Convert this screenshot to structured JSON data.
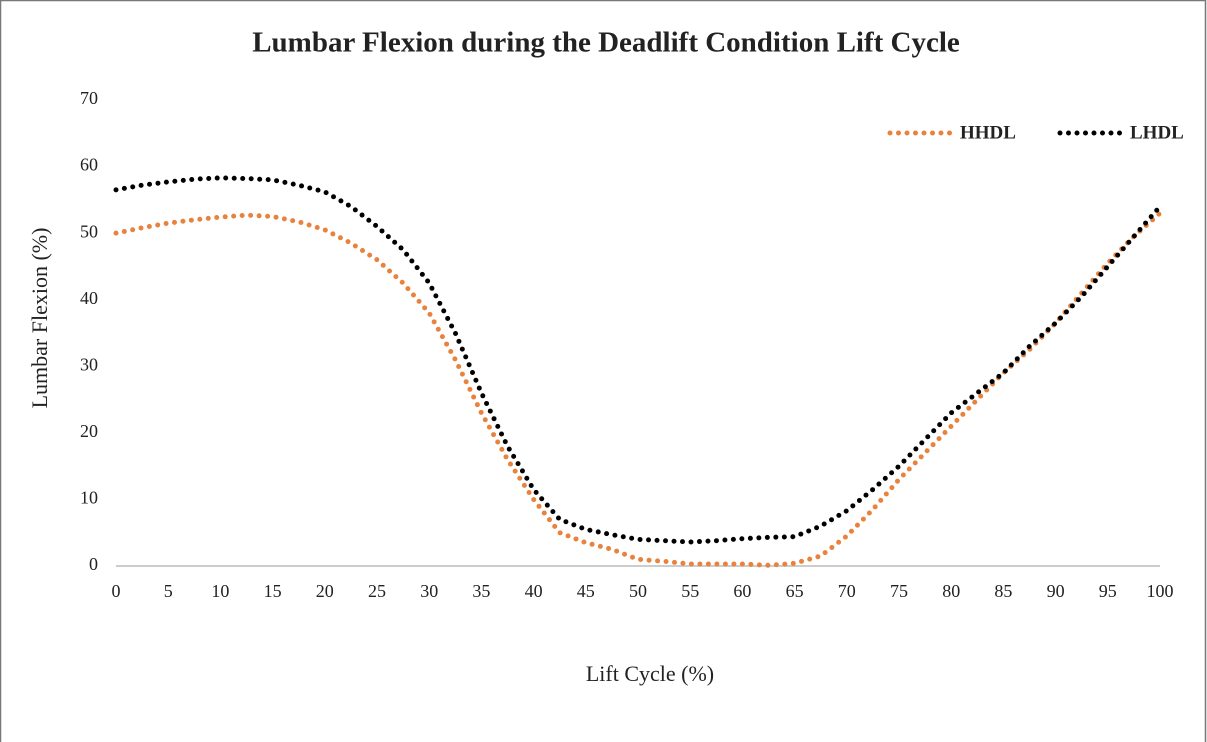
{
  "chart_data": {
    "type": "line",
    "title": "Lumbar Flexion during the Deadlift Condition Lift Cycle",
    "x_label": "Lift Cycle (%)",
    "y_label": "Lumbar Flexion (%)",
    "x": [
      0,
      2.5,
      5,
      7.5,
      10,
      12.5,
      15,
      17.5,
      20,
      22.5,
      25,
      27.5,
      30,
      32.5,
      35,
      37.5,
      40,
      42.5,
      45,
      47.5,
      50,
      52.5,
      55,
      57.5,
      60,
      62.5,
      65,
      67.5,
      70,
      72.5,
      75,
      77.5,
      80,
      82.5,
      85,
      87.5,
      90,
      92.5,
      95,
      97.5,
      100
    ],
    "series": [
      {
        "name": "HHDL",
        "color": "#e8823c",
        "values": [
          50,
          50.8,
          51.5,
          52,
          52.4,
          52.7,
          52.5,
          51.7,
          50.5,
          48.5,
          46,
          42.5,
          38,
          31,
          23,
          16,
          10,
          5,
          3.5,
          2.5,
          1,
          0.7,
          0.3,
          0.3,
          0.3,
          0.1,
          0.4,
          1.5,
          4.5,
          8.5,
          13,
          17,
          21,
          25,
          29,
          32.5,
          36.5,
          41,
          45.5,
          49.5,
          53
        ]
      },
      {
        "name": "LHDL",
        "color": "#000000",
        "values": [
          56.5,
          57.2,
          57.7,
          58.1,
          58.3,
          58.2,
          58,
          57.2,
          56.2,
          54,
          51,
          47.5,
          42.5,
          35,
          26,
          18,
          11.5,
          7,
          5.5,
          4.7,
          4,
          3.8,
          3.6,
          3.8,
          4.1,
          4.3,
          4.4,
          6,
          8.3,
          11.5,
          15,
          19,
          23,
          26,
          29,
          33,
          36.5,
          40.5,
          45,
          49.5,
          54
        ]
      }
    ],
    "xlim": [
      0,
      100
    ],
    "xticks": [
      0,
      5,
      10,
      15,
      20,
      25,
      30,
      35,
      40,
      45,
      50,
      55,
      60,
      65,
      70,
      75,
      80,
      85,
      90,
      95,
      100
    ],
    "ylim": [
      0,
      70
    ],
    "yticks": [
      0,
      10,
      20,
      30,
      40,
      50,
      60,
      70
    ],
    "grid": false,
    "legend": "upper right"
  }
}
